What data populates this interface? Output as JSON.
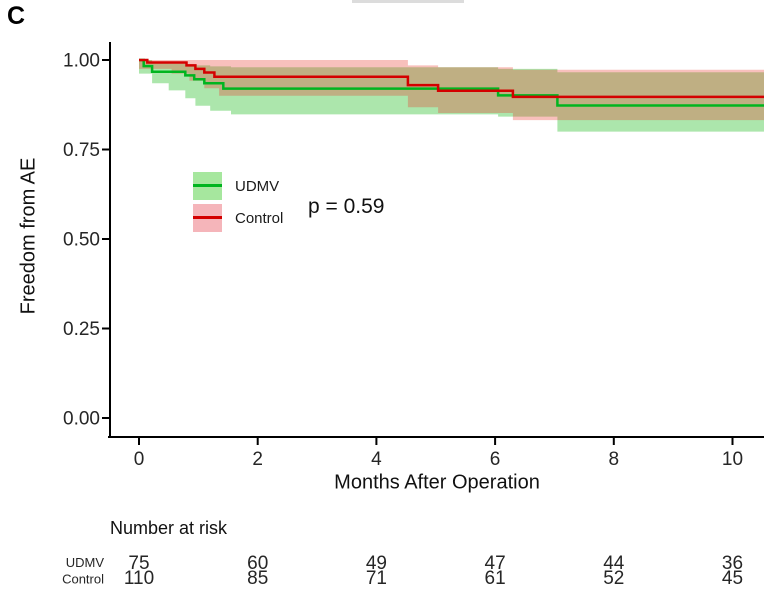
{
  "panel_label": "C",
  "chart_data": {
    "type": "line",
    "subtype": "kaplan-meier-step",
    "title": "",
    "xlabel": "Months After Operation",
    "ylabel": "Freedom from AE",
    "p_value_label": "p = 0.59",
    "xlim": [
      -0.5,
      10.55
    ],
    "ylim": [
      0.0,
      1.05
    ],
    "x_ticks": [
      0,
      2,
      4,
      6,
      8,
      10
    ],
    "y_ticks": [
      0.0,
      0.25,
      0.5,
      0.75,
      1.0
    ],
    "x_tick_labels": [
      "0",
      "2",
      "4",
      "6",
      "8",
      "10"
    ],
    "y_tick_labels": [
      "1.00",
      "0.75",
      "0.50",
      "0.25",
      "0.00"
    ],
    "grid": false,
    "legend_position": "inside-left",
    "series": [
      {
        "name": "UDMV",
        "color": "#00b51f",
        "band_fill": "rgba(70,200,70,0.45)",
        "legend_fill": "#a6e79e",
        "steps": [
          [
            0,
            1.0
          ],
          [
            0.08,
            0.983
          ],
          [
            0.22,
            0.967
          ],
          [
            0.78,
            0.957
          ],
          [
            0.93,
            0.946
          ],
          [
            1.1,
            0.935
          ],
          [
            1.42,
            0.92
          ],
          [
            6.05,
            0.901
          ],
          [
            7.05,
            0.873
          ],
          [
            10.53,
            0.873
          ]
        ],
        "band": [
          [
            0,
            0.962,
            1.0
          ],
          [
            0.22,
            0.935,
            0.995
          ],
          [
            0.5,
            0.915,
            0.99
          ],
          [
            0.78,
            0.893,
            0.988
          ],
          [
            0.95,
            0.872,
            0.985
          ],
          [
            1.2,
            0.858,
            0.982
          ],
          [
            1.55,
            0.848,
            0.98
          ],
          [
            6.05,
            0.842,
            0.975
          ],
          [
            7.05,
            0.8,
            0.966
          ],
          [
            10.53,
            0.8,
            0.966
          ]
        ]
      },
      {
        "name": "Control",
        "color": "#d40000",
        "band_fill": "rgba(233,60,48,0.32)",
        "legend_fill": "#f5b5ba",
        "steps": [
          [
            0,
            1.0
          ],
          [
            0.14,
            0.993
          ],
          [
            0.8,
            0.985
          ],
          [
            0.95,
            0.975
          ],
          [
            1.1,
            0.965
          ],
          [
            1.27,
            0.953
          ],
          [
            4.53,
            0.93
          ],
          [
            5.04,
            0.914
          ],
          [
            6.3,
            0.897
          ],
          [
            10.53,
            0.897
          ]
        ],
        "band": [
          [
            0,
            0.975,
            1.0
          ],
          [
            0.55,
            0.962,
            1.0
          ],
          [
            0.85,
            0.942,
            1.0
          ],
          [
            1.1,
            0.921,
            1.0
          ],
          [
            1.35,
            0.9,
            1.0
          ],
          [
            4.53,
            0.868,
            0.985
          ],
          [
            5.04,
            0.852,
            0.98
          ],
          [
            6.3,
            0.832,
            0.973
          ],
          [
            10.53,
            0.832,
            0.973
          ]
        ]
      }
    ],
    "number_at_risk": {
      "title": "Number at risk",
      "x_positions_months": [
        0,
        2,
        4,
        6,
        8,
        10
      ],
      "rows": [
        {
          "label": "UDMV",
          "values": [
            75,
            60,
            49,
            47,
            44,
            36
          ]
        },
        {
          "label": "Control",
          "values": [
            110,
            85,
            71,
            61,
            52,
            45
          ]
        }
      ]
    }
  }
}
